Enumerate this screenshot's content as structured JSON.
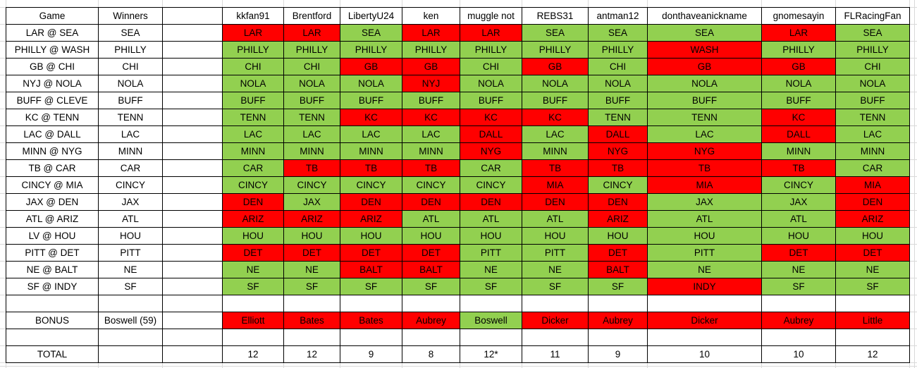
{
  "colors": {
    "correct": "#92D050",
    "incorrect": "#FF0000"
  },
  "table": {
    "columns": [
      "Game",
      "Winners",
      "",
      "kkfan91",
      "Brentford",
      "LibertyU24",
      "ken",
      "muggle not",
      "REBS31",
      "antman12",
      "donthaveanickname",
      "gnomesayin",
      "FLRacingFan"
    ],
    "games": [
      {
        "game": "LAR @ SEA",
        "winner": "SEA",
        "picks": [
          {
            "team": "LAR",
            "correct": false
          },
          {
            "team": "LAR",
            "correct": false
          },
          {
            "team": "SEA",
            "correct": true
          },
          {
            "team": "LAR",
            "correct": false
          },
          {
            "team": "LAR",
            "correct": false
          },
          {
            "team": "SEA",
            "correct": true
          },
          {
            "team": "SEA",
            "correct": true
          },
          {
            "team": "SEA",
            "correct": true
          },
          {
            "team": "LAR",
            "correct": false
          },
          {
            "team": "SEA",
            "correct": true
          }
        ]
      },
      {
        "game": "PHILLY @ WASH",
        "winner": "PHILLY",
        "picks": [
          {
            "team": "PHILLY",
            "correct": true
          },
          {
            "team": "PHILLY",
            "correct": true
          },
          {
            "team": "PHILLY",
            "correct": true
          },
          {
            "team": "PHILLY",
            "correct": true
          },
          {
            "team": "PHILLY",
            "correct": true
          },
          {
            "team": "PHILLY",
            "correct": true
          },
          {
            "team": "PHILLY",
            "correct": true
          },
          {
            "team": "WASH",
            "correct": false
          },
          {
            "team": "PHILLY",
            "correct": true
          },
          {
            "team": "PHILLY",
            "correct": true
          }
        ]
      },
      {
        "game": "GB @ CHI",
        "winner": "CHI",
        "picks": [
          {
            "team": "CHI",
            "correct": true
          },
          {
            "team": "CHI",
            "correct": true
          },
          {
            "team": "GB",
            "correct": false
          },
          {
            "team": "GB",
            "correct": false
          },
          {
            "team": "CHI",
            "correct": true
          },
          {
            "team": "GB",
            "correct": false
          },
          {
            "team": "CHI",
            "correct": true
          },
          {
            "team": "GB",
            "correct": false
          },
          {
            "team": "GB",
            "correct": false
          },
          {
            "team": "CHI",
            "correct": true
          }
        ]
      },
      {
        "game": "NYJ @ NOLA",
        "winner": "NOLA",
        "picks": [
          {
            "team": "NOLA",
            "correct": true
          },
          {
            "team": "NOLA",
            "correct": true
          },
          {
            "team": "NOLA",
            "correct": true
          },
          {
            "team": "NYJ",
            "correct": false
          },
          {
            "team": "NOLA",
            "correct": true
          },
          {
            "team": "NOLA",
            "correct": true
          },
          {
            "team": "NOLA",
            "correct": true
          },
          {
            "team": "NOLA",
            "correct": true
          },
          {
            "team": "NOLA",
            "correct": true
          },
          {
            "team": "NOLA",
            "correct": true
          }
        ]
      },
      {
        "game": "BUFF @ CLEVE",
        "winner": "BUFF",
        "picks": [
          {
            "team": "BUFF",
            "correct": true
          },
          {
            "team": "BUFF",
            "correct": true
          },
          {
            "team": "BUFF",
            "correct": true
          },
          {
            "team": "BUFF",
            "correct": true
          },
          {
            "team": "BUFF",
            "correct": true
          },
          {
            "team": "BUFF",
            "correct": true
          },
          {
            "team": "BUFF",
            "correct": true
          },
          {
            "team": "BUFF",
            "correct": true
          },
          {
            "team": "BUFF",
            "correct": true
          },
          {
            "team": "BUFF",
            "correct": true
          }
        ]
      },
      {
        "game": "KC @ TENN",
        "winner": "TENN",
        "picks": [
          {
            "team": "TENN",
            "correct": true
          },
          {
            "team": "TENN",
            "correct": true
          },
          {
            "team": "KC",
            "correct": false
          },
          {
            "team": "KC",
            "correct": false
          },
          {
            "team": "KC",
            "correct": false
          },
          {
            "team": "KC",
            "correct": false
          },
          {
            "team": "TENN",
            "correct": true
          },
          {
            "team": "TENN",
            "correct": true
          },
          {
            "team": "KC",
            "correct": false
          },
          {
            "team": "TENN",
            "correct": true
          }
        ]
      },
      {
        "game": "LAC @ DALL",
        "winner": "LAC",
        "picks": [
          {
            "team": "LAC",
            "correct": true
          },
          {
            "team": "LAC",
            "correct": true
          },
          {
            "team": "LAC",
            "correct": true
          },
          {
            "team": "LAC",
            "correct": true
          },
          {
            "team": "DALL",
            "correct": false
          },
          {
            "team": "LAC",
            "correct": true
          },
          {
            "team": "DALL",
            "correct": false
          },
          {
            "team": "LAC",
            "correct": true
          },
          {
            "team": "DALL",
            "correct": false
          },
          {
            "team": "LAC",
            "correct": true
          }
        ]
      },
      {
        "game": "MINN @ NYG",
        "winner": "MINN",
        "picks": [
          {
            "team": "MINN",
            "correct": true
          },
          {
            "team": "MINN",
            "correct": true
          },
          {
            "team": "MINN",
            "correct": true
          },
          {
            "team": "MINN",
            "correct": true
          },
          {
            "team": "NYG",
            "correct": false
          },
          {
            "team": "MINN",
            "correct": true
          },
          {
            "team": "NYG",
            "correct": false
          },
          {
            "team": "NYG",
            "correct": false
          },
          {
            "team": "MINN",
            "correct": true
          },
          {
            "team": "MINN",
            "correct": true
          }
        ]
      },
      {
        "game": "TB @ CAR",
        "winner": "CAR",
        "picks": [
          {
            "team": "CAR",
            "correct": true
          },
          {
            "team": "TB",
            "correct": false
          },
          {
            "team": "TB",
            "correct": false
          },
          {
            "team": "TB",
            "correct": false
          },
          {
            "team": "CAR",
            "correct": true
          },
          {
            "team": "TB",
            "correct": false
          },
          {
            "team": "TB",
            "correct": false
          },
          {
            "team": "TB",
            "correct": false
          },
          {
            "team": "TB",
            "correct": false
          },
          {
            "team": "CAR",
            "correct": true
          }
        ]
      },
      {
        "game": "CINCY @ MIA",
        "winner": "CINCY",
        "picks": [
          {
            "team": "CINCY",
            "correct": true
          },
          {
            "team": "CINCY",
            "correct": true
          },
          {
            "team": "CINCY",
            "correct": true
          },
          {
            "team": "CINCY",
            "correct": true
          },
          {
            "team": "CINCY",
            "correct": true
          },
          {
            "team": "MIA",
            "correct": false
          },
          {
            "team": "CINCY",
            "correct": true
          },
          {
            "team": "MIA",
            "correct": false
          },
          {
            "team": "CINCY",
            "correct": true
          },
          {
            "team": "MIA",
            "correct": false
          }
        ]
      },
      {
        "game": "JAX @ DEN",
        "winner": "JAX",
        "picks": [
          {
            "team": "DEN",
            "correct": false
          },
          {
            "team": "JAX",
            "correct": true
          },
          {
            "team": "DEN",
            "correct": false
          },
          {
            "team": "DEN",
            "correct": false
          },
          {
            "team": "DEN",
            "correct": false
          },
          {
            "team": "DEN",
            "correct": false
          },
          {
            "team": "DEN",
            "correct": false
          },
          {
            "team": "JAX",
            "correct": true
          },
          {
            "team": "JAX",
            "correct": true
          },
          {
            "team": "DEN",
            "correct": false
          }
        ]
      },
      {
        "game": "ATL @ ARIZ",
        "winner": "ATL",
        "picks": [
          {
            "team": "ARIZ",
            "correct": false
          },
          {
            "team": "ARIZ",
            "correct": false
          },
          {
            "team": "ARIZ",
            "correct": false
          },
          {
            "team": "ATL",
            "correct": true
          },
          {
            "team": "ATL",
            "correct": true
          },
          {
            "team": "ATL",
            "correct": true
          },
          {
            "team": "ARIZ",
            "correct": false
          },
          {
            "team": "ATL",
            "correct": true
          },
          {
            "team": "ATL",
            "correct": true
          },
          {
            "team": "ARIZ",
            "correct": false
          }
        ]
      },
      {
        "game": "LV @ HOU",
        "winner": "HOU",
        "picks": [
          {
            "team": "HOU",
            "correct": true
          },
          {
            "team": "HOU",
            "correct": true
          },
          {
            "team": "HOU",
            "correct": true
          },
          {
            "team": "HOU",
            "correct": true
          },
          {
            "team": "HOU",
            "correct": true
          },
          {
            "team": "HOU",
            "correct": true
          },
          {
            "team": "HOU",
            "correct": true
          },
          {
            "team": "HOU",
            "correct": true
          },
          {
            "team": "HOU",
            "correct": true
          },
          {
            "team": "HOU",
            "correct": true
          }
        ]
      },
      {
        "game": "PITT @ DET",
        "winner": "PITT",
        "picks": [
          {
            "team": "DET",
            "correct": false
          },
          {
            "team": "DET",
            "correct": false
          },
          {
            "team": "DET",
            "correct": false
          },
          {
            "team": "DET",
            "correct": false
          },
          {
            "team": "PITT",
            "correct": true
          },
          {
            "team": "PITT",
            "correct": true
          },
          {
            "team": "DET",
            "correct": false
          },
          {
            "team": "PITT",
            "correct": true
          },
          {
            "team": "DET",
            "correct": false
          },
          {
            "team": "DET",
            "correct": false
          }
        ]
      },
      {
        "game": "NE @ BALT",
        "winner": "NE",
        "picks": [
          {
            "team": "NE",
            "correct": true
          },
          {
            "team": "NE",
            "correct": true
          },
          {
            "team": "BALT",
            "correct": false
          },
          {
            "team": "BALT",
            "correct": false
          },
          {
            "team": "NE",
            "correct": true
          },
          {
            "team": "NE",
            "correct": true
          },
          {
            "team": "BALT",
            "correct": false
          },
          {
            "team": "NE",
            "correct": true
          },
          {
            "team": "NE",
            "correct": true
          },
          {
            "team": "NE",
            "correct": true
          }
        ]
      },
      {
        "game": "SF @ INDY",
        "winner": "SF",
        "picks": [
          {
            "team": "SF",
            "correct": true
          },
          {
            "team": "SF",
            "correct": true
          },
          {
            "team": "SF",
            "correct": true
          },
          {
            "team": "SF",
            "correct": true
          },
          {
            "team": "SF",
            "correct": true
          },
          {
            "team": "SF",
            "correct": true
          },
          {
            "team": "SF",
            "correct": true
          },
          {
            "team": "INDY",
            "correct": false
          },
          {
            "team": "SF",
            "correct": true
          },
          {
            "team": "SF",
            "correct": true
          }
        ]
      }
    ],
    "bonus": {
      "label": "BONUS",
      "winner": "Boswell (59)",
      "picks": [
        {
          "player": "Elliott",
          "correct": false
        },
        {
          "player": "Bates",
          "correct": false
        },
        {
          "player": "Bates",
          "correct": false
        },
        {
          "player": "Aubrey",
          "correct": false
        },
        {
          "player": "Boswell",
          "correct": true
        },
        {
          "player": "Dicker",
          "correct": false
        },
        {
          "player": "Aubrey",
          "correct": false
        },
        {
          "player": "Dicker",
          "correct": false
        },
        {
          "player": "Aubrey",
          "correct": false
        },
        {
          "player": "Little",
          "correct": false
        }
      ]
    },
    "total": {
      "label": "TOTAL",
      "values": [
        "12",
        "12",
        "9",
        "8",
        "12*",
        "11",
        "9",
        "10",
        "10",
        "12"
      ]
    }
  }
}
